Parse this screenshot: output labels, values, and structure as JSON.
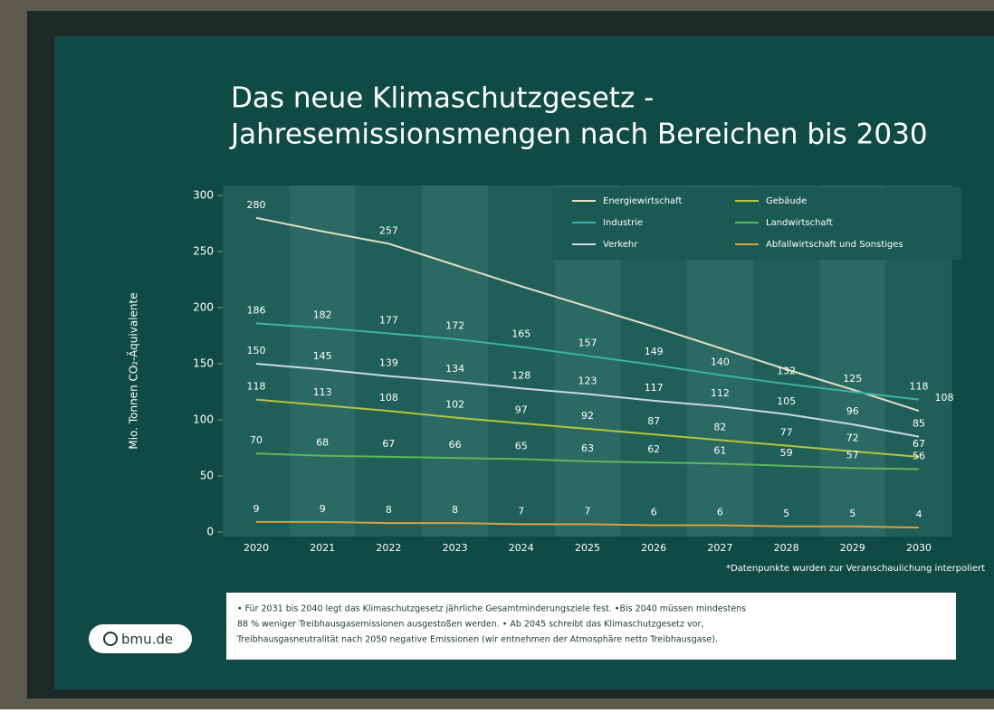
{
  "chart_data": {
    "type": "line",
    "title": [
      "Das neue Klimaschutzgesetz -",
      "Jahresemissionsmengen nach Bereichen bis 2030"
    ],
    "y_label": "Mio. Tonnen CO₂-Äquivalente",
    "categories": [
      "2020",
      "2021",
      "2022",
      "2023",
      "2024",
      "2025",
      "2026",
      "2027",
      "2028",
      "2029",
      "2030"
    ],
    "series": [
      {
        "name": "Energiewirtschaft",
        "color": "#e6e1c3",
        "values": [
          280,
          268,
          257,
          238,
          219,
          201,
          183,
          164,
          145,
          127,
          108
        ],
        "value_labels": [
          "280",
          null,
          "257",
          null,
          null,
          null,
          null,
          null,
          null,
          null,
          "108"
        ]
      },
      {
        "name": "Industrie",
        "color": "#3bb3a3",
        "values": [
          186,
          182,
          177,
          172,
          165,
          157,
          149,
          140,
          132,
          125,
          118
        ]
      },
      {
        "name": "Verkehr",
        "color": "#c9d9e6",
        "values": [
          150,
          145,
          139,
          134,
          128,
          123,
          117,
          112,
          105,
          96,
          85
        ]
      },
      {
        "name": "Gebäude",
        "color": "#b7c53f",
        "values": [
          118,
          113,
          108,
          102,
          97,
          92,
          87,
          82,
          77,
          72,
          67
        ]
      },
      {
        "name": "Landwirtschaft",
        "color": "#5fb65c",
        "values": [
          70,
          68,
          67,
          66,
          65,
          63,
          62,
          61,
          59,
          57,
          56
        ]
      },
      {
        "name": "Abfallwirtschaft und Sonstiges",
        "color": "#d9a13f",
        "values": [
          9,
          9,
          8,
          8,
          7,
          7,
          6,
          6,
          5,
          5,
          4
        ]
      }
    ],
    "ylim": [
      0,
      300
    ],
    "yticks": [
      0,
      50,
      100,
      150,
      200,
      250,
      300
    ],
    "footnote": "*Datenpunkte wurden zur Veranschaulichung interpoliert",
    "info_box": [
      "• Für 2031 bis 2040 legt das Klimaschutzgesetz jährliche Gesamtminderungsziele fest. •Bis 2040 müssen mindestens",
      "88 % weniger Treibhausgasemissionen ausgestoßen werden. • Ab 2045 schreibt das Klimaschutzgesetz vor,",
      "Treibhausgasneutralität nach 2050 negative Emissionen (wir entnehmen der Atmosphäre netto Treibhausgase)."
    ],
    "badge": "bmu.de"
  }
}
